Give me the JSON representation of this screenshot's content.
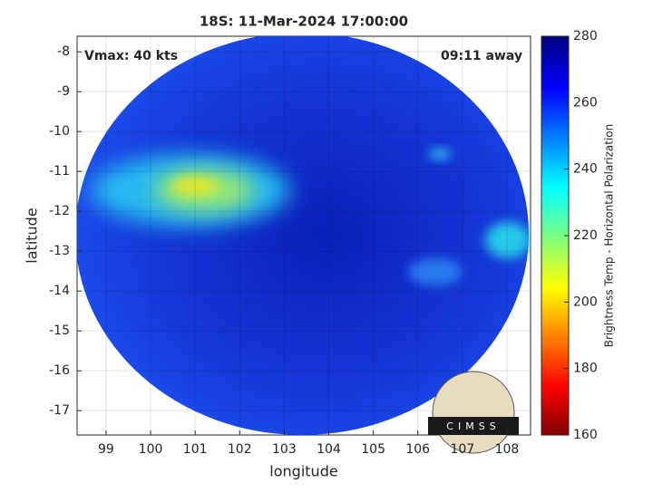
{
  "chart_data": {
    "type": "image",
    "title": "18S: 11-Mar-2024 17:00:00",
    "xlabel": "longitude",
    "ylabel": "latitude",
    "xlim": [
      98.35,
      108.53
    ],
    "xticks": [
      99,
      100,
      101,
      102,
      103,
      104,
      105,
      106,
      107,
      108
    ],
    "ylim": [
      -17.61,
      -7.61
    ],
    "yticks": [
      -17,
      -16,
      -15,
      -14,
      -13,
      -12,
      -11,
      -10,
      -9,
      -8
    ],
    "grid": true,
    "annotations": [
      "Vmax: 40 kts",
      "09:11 away"
    ],
    "logo": "CIMSS",
    "colorbar": {
      "label": "Brightness Temp - Horizontal Polarization",
      "lim": [
        160,
        280
      ],
      "ticks": [
        160,
        180,
        200,
        220,
        240,
        260,
        280
      ]
    }
  }
}
